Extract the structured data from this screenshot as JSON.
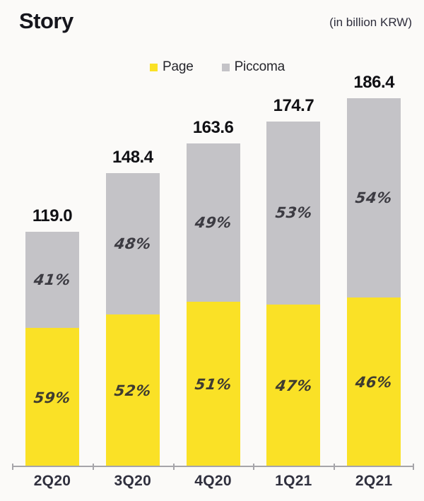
{
  "header": {
    "title": "Story",
    "unit_note": "(in billion KRW)"
  },
  "legend": {
    "items": [
      {
        "label": "Page",
        "color": "#FAE126"
      },
      {
        "label": "Piccoma",
        "color": "#C4C3C7"
      }
    ]
  },
  "chart_data": {
    "type": "bar",
    "stacked": true,
    "title": "Story",
    "unit": "in billion KRW",
    "categories": [
      "2Q20",
      "3Q20",
      "4Q20",
      "1Q21",
      "2Q21"
    ],
    "totals": [
      119.0,
      148.4,
      163.6,
      174.7,
      186.4
    ],
    "total_labels": [
      "119.0",
      "148.4",
      "163.6",
      "174.7",
      "186.4"
    ],
    "series": [
      {
        "name": "Page",
        "color": "#FAE126",
        "share_pct": [
          59,
          52,
          51,
          47,
          46
        ],
        "share_labels": [
          "59%",
          "52%",
          "51%",
          "47%",
          "46%"
        ]
      },
      {
        "name": "Piccoma",
        "color": "#C4C3C7",
        "share_pct": [
          41,
          48,
          49,
          53,
          54
        ],
        "share_labels": [
          "41%",
          "48%",
          "49%",
          "53%",
          "54%"
        ]
      }
    ],
    "legend_position": "top-center",
    "grid": false,
    "axis": {
      "baseline_only": true
    }
  },
  "colors": {
    "background": "#fbfaf8",
    "page_yellow": "#FAE126",
    "piccoma_gray": "#C4C3C7",
    "axis_line": "#a6a5aa",
    "text_dark": "#16161d"
  }
}
